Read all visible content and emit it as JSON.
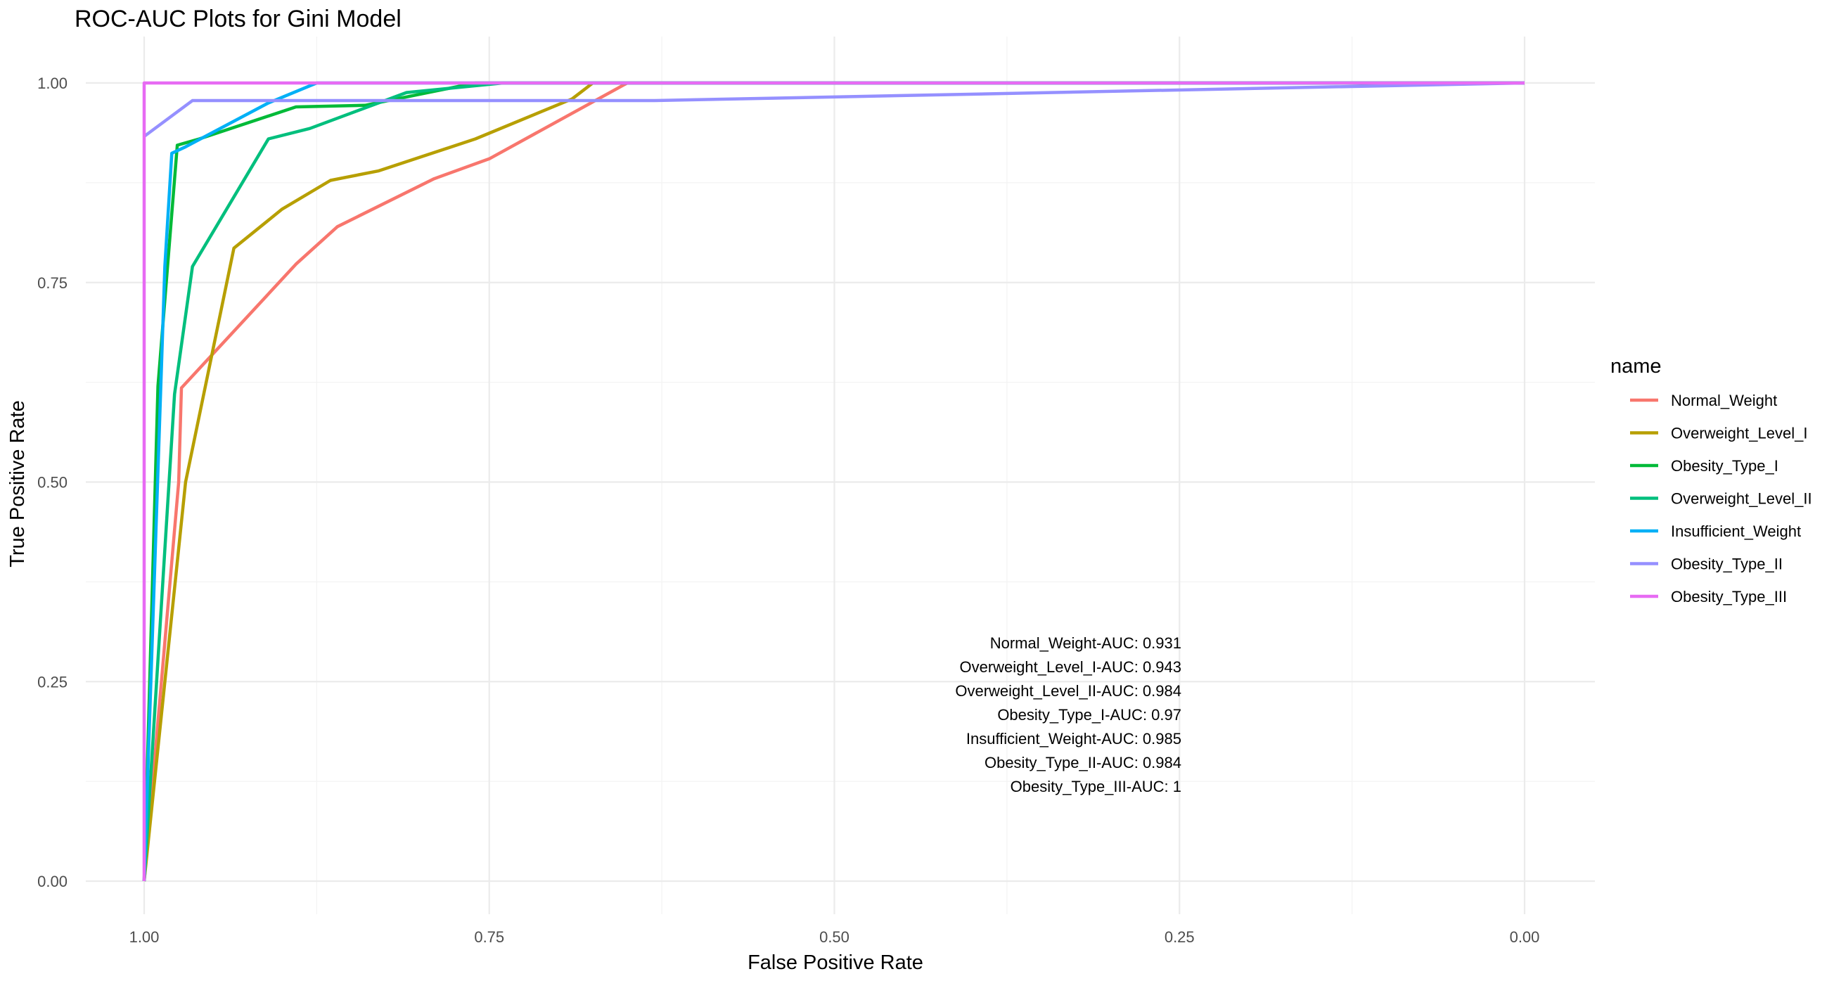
{
  "chart_data": {
    "type": "line",
    "title": "ROC-AUC Plots for Gini Model",
    "xlabel": "False Positive Rate",
    "ylabel": "True Positive Rate",
    "x_reversed": true,
    "xlim": [
      1.0,
      0.0
    ],
    "ylim": [
      0.0,
      1.0
    ],
    "x_ticks": [
      "1.00",
      "0.75",
      "0.50",
      "0.25",
      "0.00"
    ],
    "x_tick_values": [
      1.0,
      0.75,
      0.5,
      0.25,
      0.0
    ],
    "y_ticks": [
      "0.00",
      "0.25",
      "0.50",
      "0.75",
      "1.00"
    ],
    "y_tick_values": [
      0.0,
      0.25,
      0.5,
      0.75,
      1.0
    ],
    "grid": true,
    "legend": {
      "title": "name",
      "position": "right"
    },
    "series": [
      {
        "name": "Normal_Weight",
        "color": "#F8766D",
        "points": [
          [
            1.0,
            0.0
          ],
          [
            0.975,
            0.5
          ],
          [
            0.973,
            0.618
          ],
          [
            0.89,
            0.773
          ],
          [
            0.86,
            0.82
          ],
          [
            0.79,
            0.88
          ],
          [
            0.75,
            0.905
          ],
          [
            0.65,
            1.0
          ],
          [
            0.0,
            1.0
          ]
        ]
      },
      {
        "name": "Overweight_Level_I",
        "color": "#B79F00",
        "points": [
          [
            1.0,
            0.0
          ],
          [
            0.97,
            0.5
          ],
          [
            0.935,
            0.793
          ],
          [
            0.9,
            0.842
          ],
          [
            0.865,
            0.878
          ],
          [
            0.83,
            0.89
          ],
          [
            0.76,
            0.93
          ],
          [
            0.69,
            0.98
          ],
          [
            0.675,
            1.0
          ],
          [
            0.0,
            1.0
          ]
        ]
      },
      {
        "name": "Obesity_Type_I",
        "color": "#00BA38",
        "points": [
          [
            1.0,
            0.0
          ],
          [
            0.99,
            0.62
          ],
          [
            0.976,
            0.922
          ],
          [
            0.96,
            0.93
          ],
          [
            0.89,
            0.97
          ],
          [
            0.84,
            0.972
          ],
          [
            0.76,
            1.0
          ],
          [
            0.0,
            1.0
          ]
        ]
      },
      {
        "name": "Overweight_Level_II",
        "color": "#00BF7D",
        "points": [
          [
            1.0,
            0.0
          ],
          [
            0.978,
            0.61
          ],
          [
            0.965,
            0.77
          ],
          [
            0.91,
            0.93
          ],
          [
            0.88,
            0.943
          ],
          [
            0.81,
            0.988
          ],
          [
            0.74,
            1.0
          ],
          [
            0.0,
            1.0
          ]
        ]
      },
      {
        "name": "Insufficient_Weight",
        "color": "#00B0F6",
        "points": [
          [
            1.0,
            0.0
          ],
          [
            0.985,
            0.77
          ],
          [
            0.98,
            0.912
          ],
          [
            0.97,
            0.92
          ],
          [
            0.91,
            0.975
          ],
          [
            0.875,
            1.0
          ],
          [
            0.0,
            1.0
          ]
        ]
      },
      {
        "name": "Obesity_Type_II",
        "color": "#9590FF",
        "points": [
          [
            1.0,
            0.933
          ],
          [
            0.965,
            0.978
          ],
          [
            0.63,
            0.978
          ],
          [
            0.0,
            1.0
          ]
        ]
      },
      {
        "name": "Obesity_Type_III",
        "color": "#E76BF3",
        "points": [
          [
            1.0,
            0.0
          ],
          [
            1.0,
            1.0
          ],
          [
            0.0,
            1.0
          ]
        ]
      }
    ],
    "annotations": [
      "Normal_Weight-AUC: 0.931",
      "Overweight_Level_I-AUC: 0.943",
      "Overweight_Level_II-AUC: 0.984",
      "Obesity_Type_I-AUC: 0.97",
      "Insufficient_Weight-AUC: 0.985",
      "Obesity_Type_II-AUC: 0.984",
      "Obesity_Type_III-AUC: 1"
    ]
  }
}
